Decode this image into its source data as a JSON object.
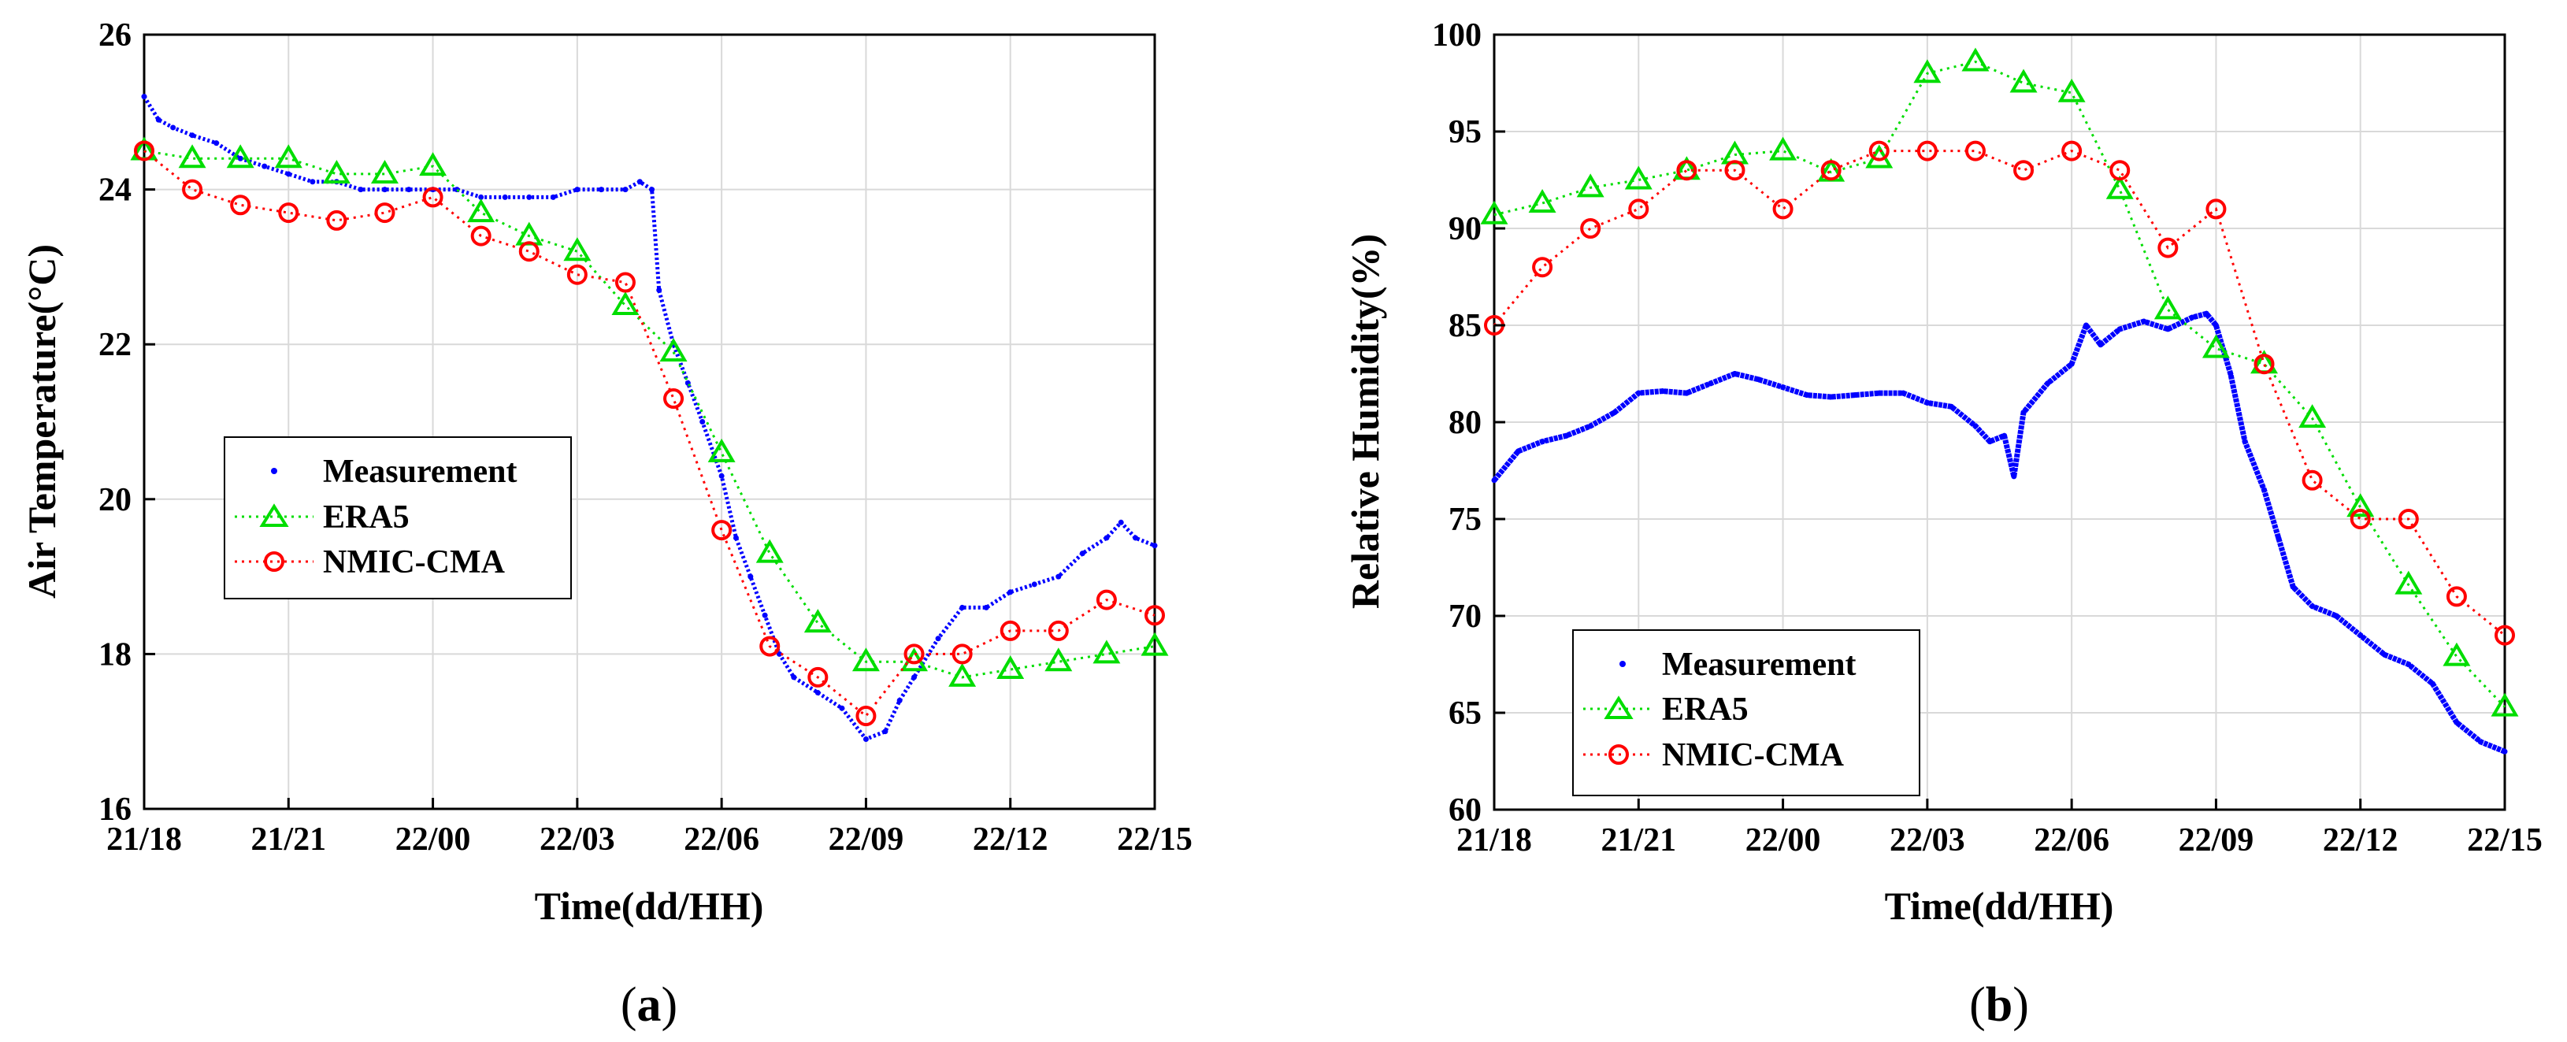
{
  "chart_data": [
    {
      "type": "line",
      "panel_label": "a",
      "xlabel": "Time(dd/HH)",
      "ylabel": "Air Temperature(°C)",
      "xlim": [
        0,
        21
      ],
      "ylim": [
        16,
        26
      ],
      "grid": true,
      "legend_position": "center-left",
      "x_ticks": [
        0,
        3,
        6,
        9,
        12,
        15,
        18,
        21
      ],
      "x_tick_labels": [
        "21/18",
        "21/21",
        "22/00",
        "22/03",
        "22/06",
        "22/09",
        "22/12",
        "22/15"
      ],
      "y_ticks": [
        16,
        18,
        20,
        22,
        24,
        26
      ],
      "y_tick_labels": [
        "16",
        "18",
        "20",
        "22",
        "24",
        "26"
      ],
      "series": [
        {
          "name": "Measurement",
          "color": "#0000ff",
          "style": "dots",
          "points": [
            [
              0,
              25.2
            ],
            [
              0.3,
              24.9
            ],
            [
              0.6,
              24.8
            ],
            [
              1,
              24.7
            ],
            [
              1.5,
              24.6
            ],
            [
              2,
              24.4
            ],
            [
              2.5,
              24.3
            ],
            [
              3,
              24.2
            ],
            [
              3.5,
              24.1
            ],
            [
              4,
              24.1
            ],
            [
              4.5,
              24.0
            ],
            [
              5,
              24.0
            ],
            [
              5.5,
              24.0
            ],
            [
              6,
              24.0
            ],
            [
              6.5,
              24.0
            ],
            [
              7,
              23.9
            ],
            [
              7.5,
              23.9
            ],
            [
              8,
              23.9
            ],
            [
              8.5,
              23.9
            ],
            [
              9,
              24.0
            ],
            [
              9.5,
              24.0
            ],
            [
              10,
              24.0
            ],
            [
              10.3,
              24.1
            ],
            [
              10.55,
              24.0
            ],
            [
              10.7,
              22.7
            ],
            [
              11,
              22.0
            ],
            [
              11.3,
              21.5
            ],
            [
              11.6,
              21.0
            ],
            [
              12,
              20.3
            ],
            [
              12.3,
              19.5
            ],
            [
              12.6,
              19.0
            ],
            [
              12.9,
              18.5
            ],
            [
              13.2,
              18.0
            ],
            [
              13.5,
              17.7
            ],
            [
              14,
              17.5
            ],
            [
              14.5,
              17.3
            ],
            [
              15,
              16.9
            ],
            [
              15.4,
              17.0
            ],
            [
              15.7,
              17.4
            ],
            [
              16,
              17.7
            ],
            [
              16.5,
              18.2
            ],
            [
              17,
              18.6
            ],
            [
              17.5,
              18.6
            ],
            [
              18,
              18.8
            ],
            [
              18.5,
              18.9
            ],
            [
              19,
              19.0
            ],
            [
              19.5,
              19.3
            ],
            [
              20,
              19.5
            ],
            [
              20.3,
              19.7
            ],
            [
              20.6,
              19.5
            ],
            [
              21,
              19.4
            ]
          ]
        },
        {
          "name": "ERA5",
          "color": "#00dd00",
          "style": "dotted line with triangle markers",
          "x": [
            0,
            1,
            2,
            3,
            4,
            5,
            6,
            7,
            8,
            9,
            10,
            11,
            12,
            13,
            14,
            15,
            16,
            17,
            18,
            19,
            20,
            21
          ],
          "values": [
            24.5,
            24.4,
            24.4,
            24.4,
            24.2,
            24.2,
            24.3,
            23.7,
            23.4,
            23.2,
            22.5,
            21.9,
            20.6,
            19.3,
            18.4,
            17.9,
            17.9,
            17.7,
            17.8,
            17.9,
            18.0,
            18.1
          ]
        },
        {
          "name": "NMIC-CMA",
          "color": "#ff0000",
          "style": "dotted line with circle markers",
          "x": [
            0,
            1,
            2,
            3,
            4,
            5,
            6,
            7,
            8,
            9,
            10,
            11,
            12,
            13,
            14,
            15,
            16,
            17,
            18,
            19,
            20,
            21
          ],
          "values": [
            24.5,
            24.0,
            23.8,
            23.7,
            23.6,
            23.7,
            23.9,
            23.4,
            23.2,
            22.9,
            22.8,
            21.3,
            19.6,
            18.1,
            17.7,
            17.2,
            18.0,
            18.0,
            18.3,
            18.3,
            18.7,
            18.5
          ]
        }
      ]
    },
    {
      "type": "line",
      "panel_label": "b",
      "xlabel": "Time(dd/HH)",
      "ylabel": "Relative Humidity(%)",
      "xlim": [
        0,
        21
      ],
      "ylim": [
        60,
        100
      ],
      "grid": true,
      "legend_position": "bottom-left",
      "x_ticks": [
        0,
        3,
        6,
        9,
        12,
        15,
        18,
        21
      ],
      "x_tick_labels": [
        "21/18",
        "21/21",
        "22/00",
        "22/03",
        "22/06",
        "22/09",
        "22/12",
        "22/15"
      ],
      "y_ticks": [
        60,
        65,
        70,
        75,
        80,
        85,
        90,
        95,
        100
      ],
      "y_tick_labels": [
        "60",
        "65",
        "70",
        "75",
        "80",
        "85",
        "90",
        "95",
        "100"
      ],
      "series": [
        {
          "name": "Measurement",
          "color": "#0000ff",
          "style": "dense dots",
          "points": [
            [
              0,
              77.0
            ],
            [
              0.5,
              78.5
            ],
            [
              1,
              79.0
            ],
            [
              1.5,
              79.3
            ],
            [
              2,
              79.8
            ],
            [
              2.5,
              80.5
            ],
            [
              3,
              81.5
            ],
            [
              3.5,
              81.6
            ],
            [
              4,
              81.5
            ],
            [
              4.5,
              82.0
            ],
            [
              5,
              82.5
            ],
            [
              5.5,
              82.2
            ],
            [
              6,
              81.8
            ],
            [
              6.5,
              81.4
            ],
            [
              7,
              81.3
            ],
            [
              7.5,
              81.4
            ],
            [
              8,
              81.5
            ],
            [
              8.5,
              81.5
            ],
            [
              9,
              81.0
            ],
            [
              9.5,
              80.8
            ],
            [
              10,
              79.8
            ],
            [
              10.3,
              79.0
            ],
            [
              10.6,
              79.3
            ],
            [
              10.8,
              77.2
            ],
            [
              11,
              80.5
            ],
            [
              11.5,
              82.0
            ],
            [
              12,
              83.0
            ],
            [
              12.3,
              85.0
            ],
            [
              12.6,
              84.0
            ],
            [
              13,
              84.8
            ],
            [
              13.5,
              85.2
            ],
            [
              14,
              84.8
            ],
            [
              14.5,
              85.4
            ],
            [
              14.8,
              85.6
            ],
            [
              15,
              85.0
            ],
            [
              15.3,
              82.5
            ],
            [
              15.6,
              79.0
            ],
            [
              16,
              76.5
            ],
            [
              16.3,
              74.0
            ],
            [
              16.6,
              71.5
            ],
            [
              17,
              70.5
            ],
            [
              17.5,
              70.0
            ],
            [
              18,
              69.0
            ],
            [
              18.5,
              68.0
            ],
            [
              19,
              67.5
            ],
            [
              19.5,
              66.5
            ],
            [
              20,
              64.5
            ],
            [
              20.5,
              63.5
            ],
            [
              21,
              63.0
            ]
          ]
        },
        {
          "name": "ERA5",
          "color": "#00dd00",
          "style": "dotted line with triangle markers",
          "x": [
            0,
            1,
            2,
            3,
            4,
            5,
            6,
            7,
            8,
            9,
            10,
            11,
            12,
            13,
            14,
            15,
            16,
            17,
            18,
            19,
            20,
            21
          ],
          "values": [
            90.7,
            91.3,
            92.1,
            92.5,
            93.0,
            93.8,
            94.0,
            92.9,
            93.6,
            98.0,
            98.6,
            97.5,
            97.0,
            92.0,
            85.8,
            83.8,
            83.0,
            80.2,
            75.6,
            71.6,
            67.9,
            65.3
          ]
        },
        {
          "name": "NMIC-CMA",
          "color": "#ff0000",
          "style": "dotted line with circle markers",
          "x": [
            0,
            1,
            2,
            3,
            4,
            5,
            6,
            7,
            8,
            9,
            10,
            11,
            12,
            13,
            14,
            15,
            16,
            17,
            18,
            19,
            20,
            21
          ],
          "values": [
            85.0,
            88.0,
            90.0,
            91.0,
            93.0,
            93.0,
            91.0,
            93.0,
            94.0,
            94.0,
            94.0,
            93.0,
            94.0,
            93.0,
            89.0,
            91.0,
            83.0,
            77.0,
            75.0,
            75.0,
            71.0,
            69.0
          ]
        }
      ]
    }
  ]
}
